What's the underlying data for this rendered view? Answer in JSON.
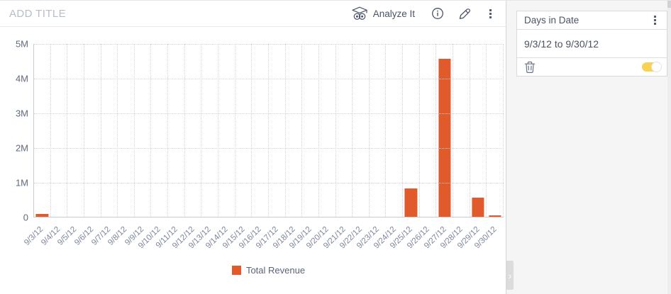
{
  "widget": {
    "title_placeholder": "ADD TITLE",
    "toolbar": {
      "analyze_label": "Analyze It",
      "icons": [
        "owl-icon",
        "info-icon",
        "edit-pencil-icon",
        "kebab-menu-icon"
      ]
    }
  },
  "chart_data": {
    "type": "bar",
    "title": "",
    "categories": [
      "9/3/12",
      "9/4/12",
      "9/5/12",
      "9/6/12",
      "9/7/12",
      "9/8/12",
      "9/9/12",
      "9/10/12",
      "9/11/12",
      "9/12/12",
      "9/13/12",
      "9/14/12",
      "9/15/12",
      "9/16/12",
      "9/17/12",
      "9/18/12",
      "9/19/12",
      "9/20/12",
      "9/21/12",
      "9/22/12",
      "9/23/12",
      "9/24/12",
      "9/25/12",
      "9/26/12",
      "9/27/12",
      "9/28/12",
      "9/29/12",
      "9/30/12"
    ],
    "series": [
      {
        "name": "Total Revenue",
        "color": "#E05A2C",
        "values": [
          75000,
          0,
          0,
          0,
          0,
          0,
          0,
          0,
          0,
          0,
          0,
          0,
          0,
          0,
          0,
          0,
          0,
          0,
          0,
          0,
          0,
          0,
          820000,
          0,
          4550000,
          0,
          550000,
          40000
        ]
      }
    ],
    "xlabel": "",
    "ylabel": "",
    "ylim": [
      0,
      5000000
    ],
    "y_ticks": [
      "5M",
      "4M",
      "3M",
      "2M",
      "1M",
      "0"
    ],
    "grid": "dotted",
    "legend_position": "bottom-center"
  },
  "filter_panel": {
    "card": {
      "title": "Days in Date",
      "value": "9/3/12 to 9/30/12",
      "toggle_on": true,
      "icons": [
        "kebab-menu-icon",
        "trash-icon",
        "toggle-on"
      ]
    },
    "collapse_chevron": "›"
  },
  "colors": {
    "bar": "#E05A2C",
    "toggle_on": "#F8D155",
    "panel_bg": "#F5F5F6",
    "grid_dotted": "#D4D4D4",
    "axis_line": "#C6CBD4",
    "x_label_text": "#7C8698",
    "y_label_text": "#606B7B",
    "title_placeholder_text": "#B7BEC9"
  }
}
